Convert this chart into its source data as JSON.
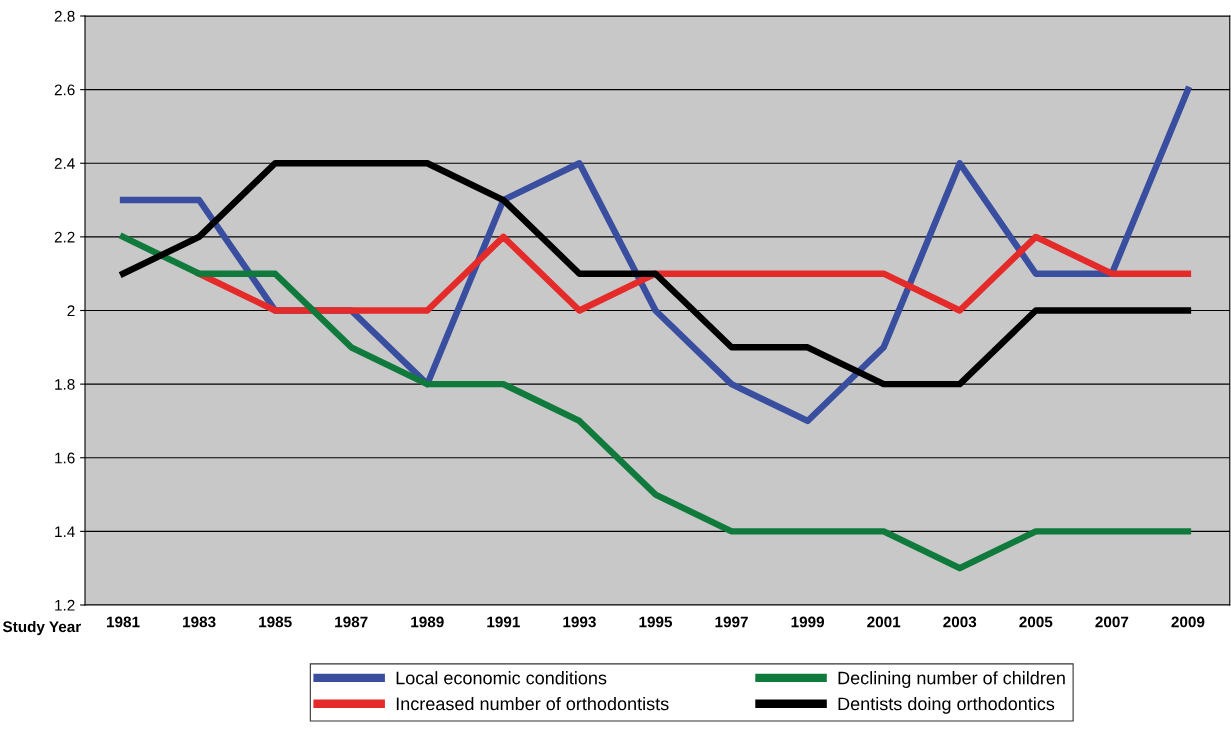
{
  "chart_data": {
    "type": "line",
    "xlabel": "Study Year",
    "categories": [
      "1981",
      "1983",
      "1985",
      "1987",
      "1989",
      "1991",
      "1993",
      "1995",
      "1997",
      "1999",
      "2001",
      "2003",
      "2005",
      "2007",
      "2009"
    ],
    "series": [
      {
        "name": "Local economic conditions",
        "color": "#3a4ea0",
        "values": [
          2.3,
          2.3,
          2.0,
          2.0,
          1.8,
          2.3,
          2.4,
          2.0,
          1.8,
          1.7,
          1.9,
          2.4,
          2.1,
          2.1,
          2.6
        ]
      },
      {
        "name": "Increased number of orthodontists",
        "color": "#e52b2a",
        "values": [
          null,
          2.1,
          2.0,
          2.0,
          2.0,
          2.2,
          2.0,
          2.1,
          2.1,
          2.1,
          2.1,
          2.0,
          2.2,
          2.1,
          2.1
        ]
      },
      {
        "name": "Declining number of children",
        "color": "#0f7a3c",
        "values": [
          2.2,
          2.1,
          2.1,
          1.9,
          1.8,
          1.8,
          1.7,
          1.5,
          1.4,
          1.4,
          1.4,
          1.3,
          1.4,
          1.4,
          1.4
        ]
      },
      {
        "name": "Dentists doing orthodontics",
        "color": "#000000",
        "values": [
          2.1,
          2.2,
          2.4,
          2.4,
          2.4,
          2.3,
          2.1,
          2.1,
          1.9,
          1.9,
          1.8,
          1.8,
          2.0,
          2.0,
          2.0
        ]
      }
    ],
    "ylim": [
      1.2,
      2.8
    ],
    "yticks": [
      1.2,
      1.4,
      1.6,
      1.8,
      2,
      2.2,
      2.4,
      2.6,
      2.8
    ],
    "grid": "y",
    "legend": "bottom",
    "marker": "none",
    "line_style": "solid"
  }
}
